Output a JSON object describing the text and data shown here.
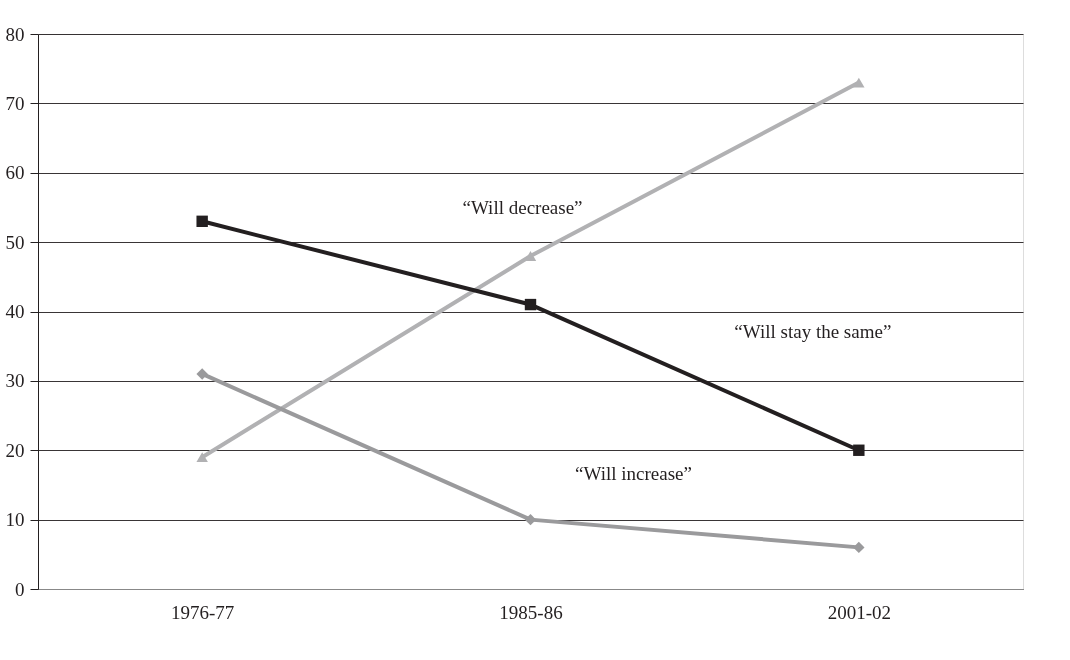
{
  "chart_data": {
    "type": "line",
    "categories": [
      "1976-77",
      "1985-86",
      "2001-02"
    ],
    "series": [
      {
        "name": "“Will decrease”",
        "color": "#b1b1b3",
        "marker": "triangle",
        "values": [
          19,
          48,
          73
        ]
      },
      {
        "name": "“Will stay the same”",
        "color": "#231f20",
        "marker": "square",
        "values": [
          53,
          41,
          20
        ]
      },
      {
        "name": "“Will increase”",
        "color": "#9a9a9c",
        "marker": "diamond",
        "values": [
          31,
          10,
          6
        ]
      }
    ],
    "ylim": [
      0,
      80
    ],
    "yticks": [
      0,
      10,
      20,
      30,
      40,
      50,
      60,
      70,
      80
    ],
    "grid": "y"
  }
}
